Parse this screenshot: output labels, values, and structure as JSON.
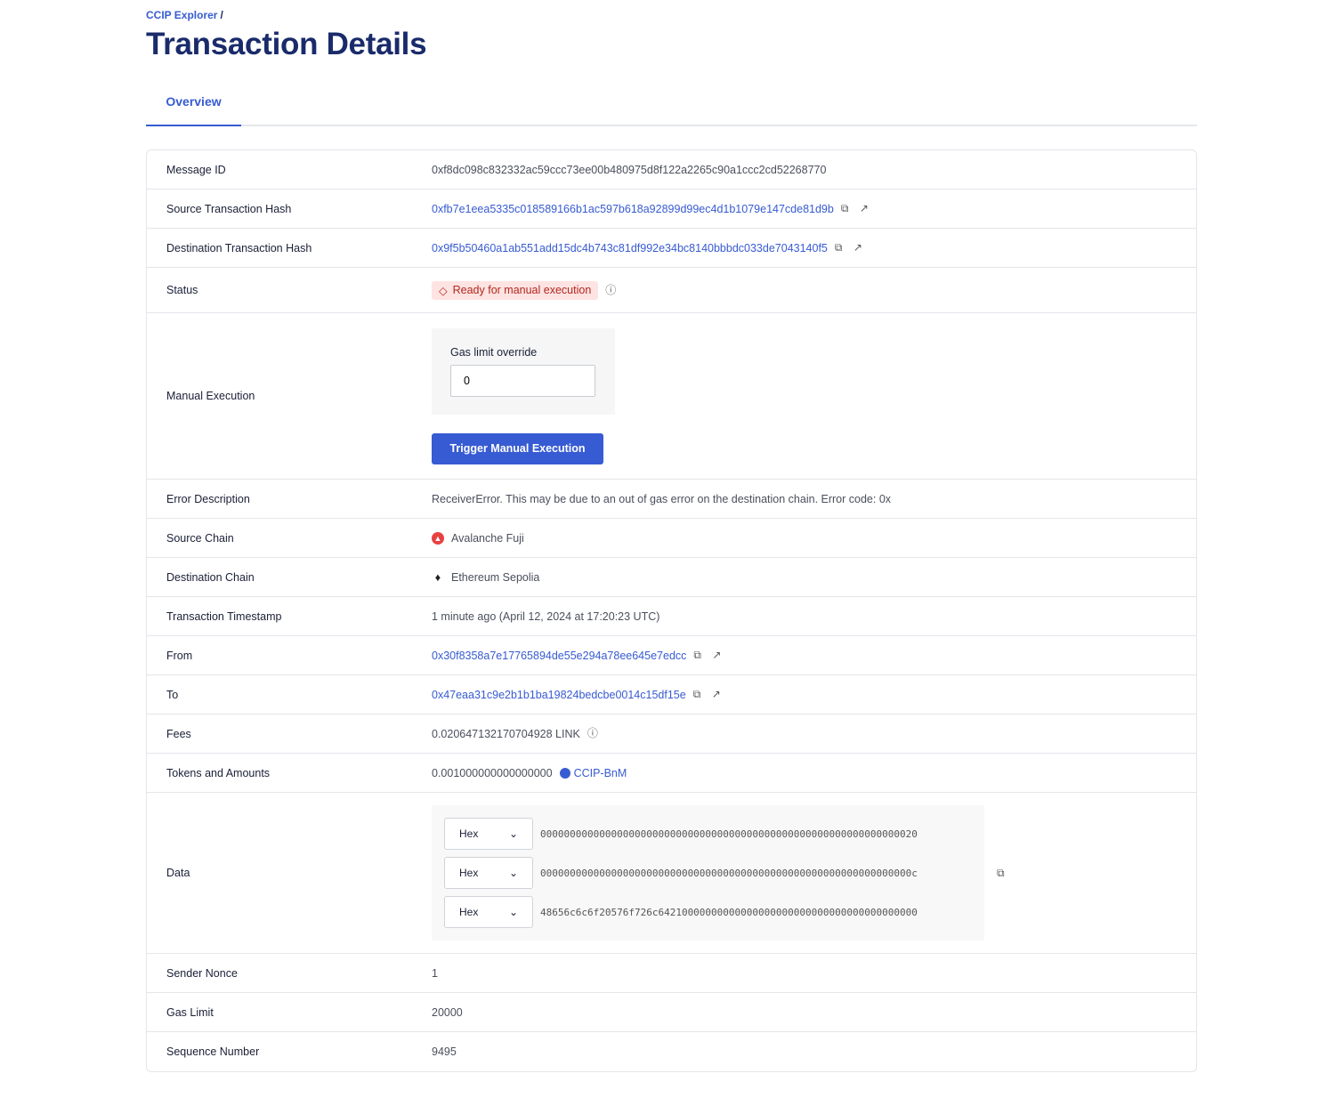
{
  "breadcrumb": {
    "root": "CCIP Explorer",
    "sep": "/"
  },
  "title": "Transaction Details",
  "tabs": [
    {
      "label": "Overview",
      "active": true
    }
  ],
  "rows": {
    "message_id": {
      "label": "Message ID",
      "value": "0xf8dc098c832332ac59ccc73ee00b480975d8f122a2265c90a1ccc2cd52268770"
    },
    "source_tx": {
      "label": "Source Transaction Hash",
      "value": "0xfb7e1eea5335c018589166b1ac597b618a92899d99ec4d1b1079e147cde81d9b"
    },
    "dest_tx": {
      "label": "Destination Transaction Hash",
      "value": "0x9f5b50460a1ab551add15dc4b743c81df992e34bc8140bbbdc033de7043140f5"
    },
    "status": {
      "label": "Status",
      "value": "Ready for manual execution"
    },
    "manual": {
      "label": "Manual Execution",
      "gas_label": "Gas limit override",
      "gas_value": "0",
      "button": "Trigger Manual Execution"
    },
    "error": {
      "label": "Error Description",
      "value": "ReceiverError. This may be due to an out of gas error on the destination chain. Error code: 0x"
    },
    "source_chain": {
      "label": "Source Chain",
      "value": "Avalanche Fuji"
    },
    "dest_chain": {
      "label": "Destination Chain",
      "value": "Ethereum Sepolia"
    },
    "timestamp": {
      "label": "Transaction Timestamp",
      "value": "1 minute ago (April 12, 2024 at 17:20:23 UTC)"
    },
    "from": {
      "label": "From",
      "value": "0x30f8358a7e17765894de55e294a78ee645e7edcc"
    },
    "to": {
      "label": "To",
      "value": "0x47eaa31c9e2b1b1ba19824bedcbe0014c15df15e"
    },
    "fees": {
      "label": "Fees",
      "value": "0.020647132170704928 LINK"
    },
    "tokens": {
      "label": "Tokens and Amounts",
      "amount": "0.001000000000000000",
      "token": "CCIP-BnM"
    },
    "data": {
      "label": "Data",
      "lines": [
        {
          "format": "Hex",
          "value": "0000000000000000000000000000000000000000000000000000000000000020"
        },
        {
          "format": "Hex",
          "value": "000000000000000000000000000000000000000000000000000000000000000c"
        },
        {
          "format": "Hex",
          "value": "48656c6c6f20576f726c64210000000000000000000000000000000000000000"
        }
      ]
    },
    "nonce": {
      "label": "Sender Nonce",
      "value": "1"
    },
    "gas_limit": {
      "label": "Gas Limit",
      "value": "20000"
    },
    "sequence": {
      "label": "Sequence Number",
      "value": "9495"
    }
  },
  "colors": {
    "accent": "#375bd2",
    "title": "#1a2b6b",
    "error_bg": "#fde4e2",
    "error_text": "#b3261e"
  }
}
